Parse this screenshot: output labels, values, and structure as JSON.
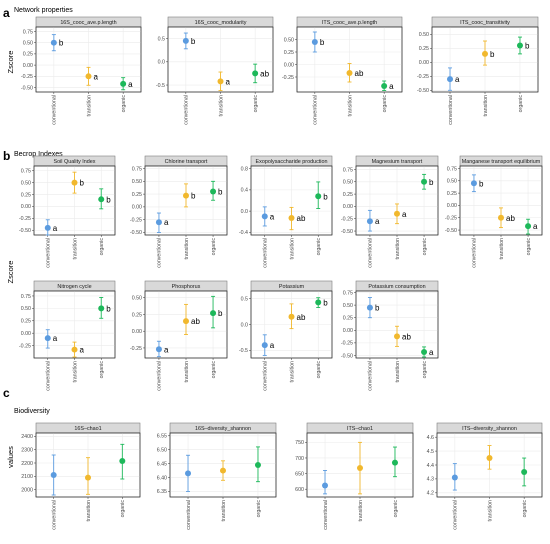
{
  "colors": {
    "conventional": "#5b9bdf",
    "transition": "#f1b82d",
    "organic": "#1db85a"
  },
  "chart_data": [
    {
      "type": "scatter",
      "panel": "a",
      "section_title": "Network properties",
      "ylabel": "Zscore",
      "categories": [
        "conventional",
        "transition",
        "organic"
      ],
      "facets": [
        {
          "title": "16S_cooc_ave.p.length",
          "ylim": [
            -0.6,
            0.85
          ],
          "ticks": [
            -0.5,
            -0.25,
            0,
            0.25,
            0.5,
            0.75
          ],
          "tick_labels": [
            "-0.50",
            "-0.25",
            "0.00",
            "0.25",
            "0.50",
            "0.75"
          ],
          "points": [
            {
              "y": 0.5,
              "lo": 0.32,
              "hi": 0.68,
              "letter": "b"
            },
            {
              "y": -0.25,
              "lo": -0.45,
              "hi": -0.05,
              "letter": "a"
            },
            {
              "y": -0.42,
              "lo": -0.55,
              "hi": -0.28,
              "letter": "a"
            }
          ]
        },
        {
          "title": "16S_cooc_modularity",
          "ylim": [
            -0.65,
            0.75
          ],
          "ticks": [
            -0.5,
            0,
            0.5
          ],
          "tick_labels": [
            "-0.5",
            "0.0",
            "0.5"
          ],
          "points": [
            {
              "y": 0.45,
              "lo": 0.28,
              "hi": 0.62,
              "letter": "b"
            },
            {
              "y": -0.42,
              "lo": -0.62,
              "hi": -0.22,
              "letter": "a"
            },
            {
              "y": -0.25,
              "lo": -0.45,
              "hi": -0.05,
              "letter": "ab"
            }
          ]
        },
        {
          "title": "ITS_cooc_ave.p.length",
          "ylim": [
            -0.55,
            0.75
          ],
          "ticks": [
            -0.25,
            0,
            0.25,
            0.5
          ],
          "tick_labels": [
            "-0.25",
            "0.00",
            "0.25",
            "0.50"
          ],
          "points": [
            {
              "y": 0.45,
              "lo": 0.25,
              "hi": 0.65,
              "letter": "b"
            },
            {
              "y": -0.17,
              "lo": -0.35,
              "hi": 0.02,
              "letter": "ab"
            },
            {
              "y": -0.43,
              "lo": -0.52,
              "hi": -0.33,
              "letter": "a"
            }
          ]
        },
        {
          "title": "ITS_cooc_transitivity",
          "ylim": [
            -0.53,
            0.63
          ],
          "ticks": [
            -0.5,
            -0.25,
            0,
            0.25,
            0.5
          ],
          "tick_labels": [
            "-0.50",
            "-0.25",
            "0.00",
            "0.25",
            "0.50"
          ],
          "points": [
            {
              "y": -0.3,
              "lo": -0.5,
              "hi": -0.1,
              "letter": "a"
            },
            {
              "y": 0.15,
              "lo": -0.05,
              "hi": 0.38,
              "letter": "b"
            },
            {
              "y": 0.3,
              "lo": 0.15,
              "hi": 0.45,
              "letter": "b"
            }
          ]
        }
      ]
    },
    {
      "type": "scatter",
      "panel": "b",
      "section_title": "Becrop Indexes",
      "ylabel": "Zscore",
      "categories": [
        "conventional",
        "transition",
        "organic"
      ],
      "facets": [
        {
          "title": "Soil Quality Index",
          "ylim": [
            -0.6,
            0.85
          ],
          "ticks": [
            -0.5,
            -0.25,
            0,
            0.25,
            0.5,
            0.75
          ],
          "tick_labels": [
            "-0.50",
            "-0.25",
            "0.00",
            "0.25",
            "0.50",
            "0.75"
          ],
          "points": [
            {
              "y": -0.45,
              "lo": -0.6,
              "hi": -0.28,
              "letter": "a"
            },
            {
              "y": 0.5,
              "lo": 0.28,
              "hi": 0.72,
              "letter": "b"
            },
            {
              "y": 0.15,
              "lo": -0.05,
              "hi": 0.37,
              "letter": "b"
            }
          ]
        },
        {
          "title": "Chlorine transport",
          "ylim": [
            -0.55,
            0.8
          ],
          "ticks": [
            -0.5,
            -0.25,
            0,
            0.25,
            0.5,
            0.75
          ],
          "tick_labels": [
            "-0.50",
            "-0.25",
            "0.00",
            "0.25",
            "0.50",
            "0.75"
          ],
          "points": [
            {
              "y": -0.3,
              "lo": -0.5,
              "hi": -0.12,
              "letter": "a"
            },
            {
              "y": 0.22,
              "lo": 0.0,
              "hi": 0.45,
              "letter": "b"
            },
            {
              "y": 0.3,
              "lo": 0.13,
              "hi": 0.5,
              "letter": "b"
            }
          ]
        },
        {
          "title": "Exopolysaccharide production",
          "ylim": [
            -0.45,
            0.85
          ],
          "ticks": [
            -0.4,
            0,
            0.4,
            0.8
          ],
          "tick_labels": [
            "-0.4",
            "0.0",
            "0.4",
            "0.8"
          ],
          "points": [
            {
              "y": -0.1,
              "lo": -0.28,
              "hi": 0.08,
              "letter": "a"
            },
            {
              "y": -0.13,
              "lo": -0.35,
              "hi": 0.07,
              "letter": "ab"
            },
            {
              "y": 0.28,
              "lo": 0.05,
              "hi": 0.55,
              "letter": "b"
            }
          ]
        },
        {
          "title": "Magnesium transport",
          "ylim": [
            -0.58,
            0.82
          ],
          "ticks": [
            -0.5,
            -0.25,
            0,
            0.25,
            0.5,
            0.75
          ],
          "tick_labels": [
            "-0.50",
            "-0.25",
            "0.00",
            "0.25",
            "0.50",
            "0.75"
          ],
          "points": [
            {
              "y": -0.3,
              "lo": -0.5,
              "hi": -0.08,
              "letter": "a"
            },
            {
              "y": -0.15,
              "lo": -0.35,
              "hi": 0.05,
              "letter": "a"
            },
            {
              "y": 0.5,
              "lo": 0.35,
              "hi": 0.65,
              "letter": "b"
            }
          ]
        },
        {
          "title": "Manganese transport equilibrium",
          "ylim": [
            -0.6,
            0.8
          ],
          "ticks": [
            -0.5,
            -0.25,
            0,
            0.25,
            0.5,
            0.75
          ],
          "tick_labels": [
            "-0.50",
            "-0.25",
            "0.00",
            "0.25",
            "0.50",
            "0.75"
          ],
          "points": [
            {
              "y": 0.45,
              "lo": 0.28,
              "hi": 0.62,
              "letter": "b"
            },
            {
              "y": -0.25,
              "lo": -0.45,
              "hi": -0.05,
              "letter": "ab"
            },
            {
              "y": -0.42,
              "lo": -0.58,
              "hi": -0.28,
              "letter": "a"
            }
          ]
        },
        {
          "title": "Nitrogen cycle",
          "ylim": [
            -0.5,
            0.85
          ],
          "ticks": [
            -0.25,
            0,
            0.25,
            0.5,
            0.75
          ],
          "tick_labels": [
            "-0.25",
            "0.00",
            "0.25",
            "0.50",
            "0.75"
          ],
          "points": [
            {
              "y": -0.1,
              "lo": -0.3,
              "hi": 0.07,
              "letter": "a"
            },
            {
              "y": -0.33,
              "lo": -0.48,
              "hi": -0.18,
              "letter": "a"
            },
            {
              "y": 0.5,
              "lo": 0.3,
              "hi": 0.72,
              "letter": "b"
            }
          ]
        },
        {
          "title": "Phosphorus",
          "ylim": [
            -0.4,
            0.6
          ],
          "ticks": [
            -0.25,
            0,
            0.25,
            0.5
          ],
          "tick_labels": [
            "-0.25",
            "0.00",
            "0.25",
            "0.50"
          ],
          "points": [
            {
              "y": -0.27,
              "lo": -0.38,
              "hi": -0.15,
              "letter": "a"
            },
            {
              "y": 0.15,
              "lo": -0.05,
              "hi": 0.4,
              "letter": "ab"
            },
            {
              "y": 0.27,
              "lo": 0.05,
              "hi": 0.52,
              "letter": "b"
            }
          ]
        },
        {
          "title": "Potassium",
          "ylim": [
            -0.65,
            0.65
          ],
          "ticks": [
            -0.5,
            0,
            0.5
          ],
          "tick_labels": [
            "-0.5",
            "0.0",
            "0.5"
          ],
          "points": [
            {
              "y": -0.4,
              "lo": -0.6,
              "hi": -0.2,
              "letter": "a"
            },
            {
              "y": 0.15,
              "lo": -0.08,
              "hi": 0.4,
              "letter": "ab"
            },
            {
              "y": 0.43,
              "lo": 0.33,
              "hi": 0.52,
              "letter": "b"
            }
          ]
        },
        {
          "title": "Potassium consumption",
          "ylim": [
            -0.55,
            0.78
          ],
          "ticks": [
            -0.5,
            -0.25,
            0,
            0.25,
            0.5,
            0.75
          ],
          "tick_labels": [
            "-0.50",
            "-0.25",
            "0.00",
            "0.25",
            "0.50",
            "0.75"
          ],
          "points": [
            {
              "y": 0.45,
              "lo": 0.25,
              "hi": 0.65,
              "letter": "b"
            },
            {
              "y": -0.12,
              "lo": -0.32,
              "hi": 0.08,
              "letter": "ab"
            },
            {
              "y": -0.43,
              "lo": -0.53,
              "hi": -0.33,
              "letter": "a"
            }
          ]
        }
      ]
    },
    {
      "type": "scatter",
      "panel": "c",
      "section_title": "Biodiversity",
      "ylabel": "values",
      "categories": [
        "conventional",
        "transition",
        "organic"
      ],
      "facets": [
        {
          "title": "16S–chao1",
          "ylim": [
            1945,
            2425
          ],
          "ticks": [
            2000,
            2100,
            2200,
            2300,
            2400
          ],
          "tick_labels": [
            "2000",
            "2100",
            "2200",
            "2300",
            "2400"
          ],
          "points": [
            {
              "y": 2110,
              "lo": 1960,
              "hi": 2260,
              "letter": ""
            },
            {
              "y": 2090,
              "lo": 1965,
              "hi": 2240,
              "letter": ""
            },
            {
              "y": 2215,
              "lo": 2080,
              "hi": 2340,
              "letter": ""
            }
          ]
        },
        {
          "title": "16S–diversity_shannon",
          "ylim": [
            6.33,
            6.56
          ],
          "ticks": [
            6.35,
            6.4,
            6.45,
            6.5,
            6.55
          ],
          "tick_labels": [
            "6.35",
            "6.40",
            "6.45",
            "6.50",
            "6.55"
          ],
          "points": [
            {
              "y": 6.415,
              "lo": 6.35,
              "hi": 6.48,
              "letter": ""
            },
            {
              "y": 6.425,
              "lo": 6.39,
              "hi": 6.46,
              "letter": ""
            },
            {
              "y": 6.445,
              "lo": 6.385,
              "hi": 6.51,
              "letter": ""
            }
          ]
        },
        {
          "title": "ITS–chao1",
          "ylim": [
            575,
            780
          ],
          "ticks": [
            600,
            650,
            700,
            750
          ],
          "tick_labels": [
            "600",
            "650",
            "700",
            "750"
          ],
          "points": [
            {
              "y": 612,
              "lo": 585,
              "hi": 660,
              "letter": ""
            },
            {
              "y": 668,
              "lo": 585,
              "hi": 750,
              "letter": ""
            },
            {
              "y": 685,
              "lo": 640,
              "hi": 735,
              "letter": ""
            }
          ]
        },
        {
          "title": "ITS–diversity_shannon",
          "ylim": [
            4.17,
            4.63
          ],
          "ticks": [
            4.2,
            4.3,
            4.4,
            4.5,
            4.6
          ],
          "tick_labels": [
            "4.2",
            "4.3",
            "4.4",
            "4.5",
            "4.6"
          ],
          "points": [
            {
              "y": 4.31,
              "lo": 4.22,
              "hi": 4.41,
              "letter": ""
            },
            {
              "y": 4.45,
              "lo": 4.37,
              "hi": 4.54,
              "letter": ""
            },
            {
              "y": 4.35,
              "lo": 4.25,
              "hi": 4.45,
              "letter": ""
            }
          ]
        }
      ]
    }
  ]
}
